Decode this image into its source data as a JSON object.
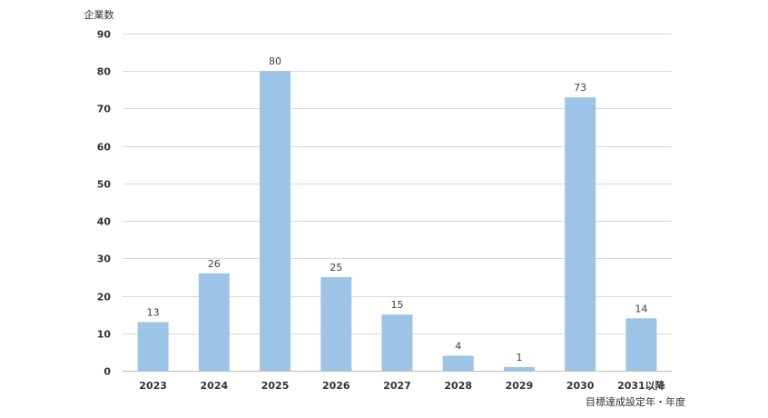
{
  "chart_data": {
    "type": "bar",
    "categories": [
      "2023",
      "2024",
      "2025",
      "2026",
      "2027",
      "2028",
      "2029",
      "2030",
      "2031以降"
    ],
    "values": [
      13,
      26,
      80,
      25,
      15,
      4,
      1,
      73,
      14
    ],
    "ylim": [
      0,
      90
    ],
    "yticks": [
      0,
      10,
      20,
      30,
      40,
      50,
      60,
      70,
      80,
      90
    ],
    "ylabel": "企業数",
    "xlabel": "目標達成設定年・年度",
    "grid": true,
    "legend": "none",
    "bar_color": "#9dc3e6",
    "show_data_labels": true
  }
}
